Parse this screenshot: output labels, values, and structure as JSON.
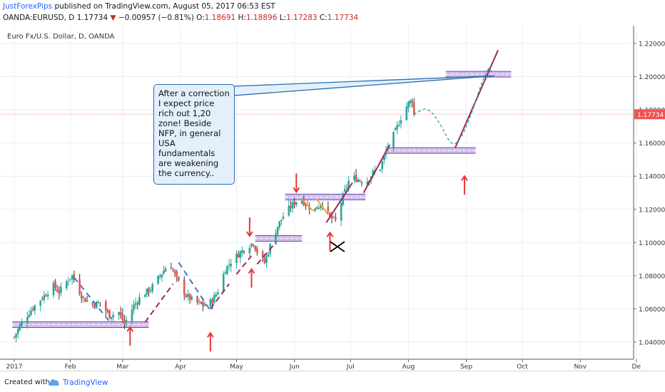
{
  "header": {
    "author": "JustForexPips",
    "published_text": "published on TradingView.com, August 05, 2017 06:53 EST",
    "symbol": "OANDA:EURUSD, D",
    "last": "1.17734",
    "change_arrow": "▼",
    "change": "−0.00957 (−0.81%)",
    "o_label": "O:",
    "o_value": "1.18691",
    "h_label": "H:",
    "h_value": "1.18896",
    "l_label": "L:",
    "l_value": "1.17283",
    "c_label": "C:",
    "c_value": "1.17734"
  },
  "chart_data": {
    "type": "candlestick",
    "title": "Euro Fx/U.S. Dollar, D, OANDA",
    "x_ticks": [
      "2017",
      "Feb",
      "Mar",
      "Apr",
      "May",
      "Jun",
      "Jul",
      "Aug",
      "Sep",
      "Oct",
      "Nov",
      "De"
    ],
    "y_ticks": [
      "1.04000",
      "1.06000",
      "1.08000",
      "1.10000",
      "1.12000",
      "1.14000",
      "1.16000",
      "1.18000",
      "1.20000",
      "1.22000"
    ],
    "ylim": [
      1.032,
      1.227
    ],
    "last_price": 1.17734,
    "last_price_label": "1.17734",
    "price_path": [
      [
        "2017-01-02",
        1.043
      ],
      [
        "2017-01-05",
        1.05
      ],
      [
        "2017-01-10",
        1.058
      ],
      [
        "2017-01-13",
        1.062
      ],
      [
        "2017-01-18",
        1.068
      ],
      [
        "2017-01-23",
        1.074
      ],
      [
        "2017-01-26",
        1.07
      ],
      [
        "2017-01-31",
        1.078
      ],
      [
        "2017-02-02",
        1.08
      ],
      [
        "2017-02-07",
        1.068
      ],
      [
        "2017-02-12",
        1.062
      ],
      [
        "2017-02-17",
        1.064
      ],
      [
        "2017-02-22",
        1.056
      ],
      [
        "2017-02-27",
        1.058
      ],
      [
        "2017-03-02",
        1.051
      ],
      [
        "2017-03-07",
        1.062
      ],
      [
        "2017-03-11",
        1.068
      ],
      [
        "2017-03-16",
        1.072
      ],
      [
        "2017-03-21",
        1.08
      ],
      [
        "2017-03-26",
        1.088
      ],
      [
        "2017-03-30",
        1.078
      ],
      [
        "2017-04-04",
        1.068
      ],
      [
        "2017-04-09",
        1.064
      ],
      [
        "2017-04-14",
        1.062
      ],
      [
        "2017-04-18",
        1.065
      ],
      [
        "2017-04-21",
        1.071
      ],
      [
        "2017-04-25",
        1.084
      ],
      [
        "2017-04-29",
        1.09
      ],
      [
        "2017-05-03",
        1.094
      ],
      [
        "2017-05-07",
        1.098
      ],
      [
        "2017-05-10",
        1.1
      ],
      [
        "2017-05-13",
        1.092
      ],
      [
        "2017-05-16",
        1.088
      ],
      [
        "2017-05-19",
        1.098
      ],
      [
        "2017-05-23",
        1.11
      ],
      [
        "2017-05-27",
        1.118
      ],
      [
        "2017-06-01",
        1.124
      ],
      [
        "2017-06-04",
        1.127
      ],
      [
        "2017-06-08",
        1.122
      ],
      [
        "2017-06-12",
        1.12
      ],
      [
        "2017-06-16",
        1.124
      ],
      [
        "2017-06-20",
        1.115
      ],
      [
        "2017-06-23",
        1.113
      ],
      [
        "2017-06-27",
        1.128
      ],
      [
        "2017-07-01",
        1.14
      ],
      [
        "2017-07-05",
        1.138
      ],
      [
        "2017-07-09",
        1.136
      ],
      [
        "2017-07-13",
        1.142
      ],
      [
        "2017-07-17",
        1.145
      ],
      [
        "2017-07-21",
        1.158
      ],
      [
        "2017-07-25",
        1.167
      ],
      [
        "2017-07-29",
        1.178
      ],
      [
        "2017-08-01",
        1.184
      ],
      [
        "2017-08-03",
        1.186
      ],
      [
        "2017-08-04",
        1.177
      ]
    ],
    "forecast_path": [
      [
        "2017-08-04",
        1.17734
      ],
      [
        "2017-08-11",
        1.182
      ],
      [
        "2017-08-18",
        1.172
      ],
      [
        "2017-08-24",
        1.158
      ],
      [
        "2017-08-29",
        1.162
      ],
      [
        "2017-09-04",
        1.178
      ],
      [
        "2017-09-09",
        1.196
      ],
      [
        "2017-09-13",
        1.205
      ]
    ],
    "zones": [
      {
        "price": 1.0505,
        "from": "2017-01-01",
        "to": "2017-03-15"
      },
      {
        "price": 1.1025,
        "from": "2017-05-11",
        "to": "2017-06-05"
      },
      {
        "price": 1.1275,
        "from": "2017-05-27",
        "to": "2017-07-09"
      },
      {
        "price": 1.1555,
        "from": "2017-07-21",
        "to": "2017-09-06"
      },
      {
        "price": 1.2015,
        "from": "2017-08-21",
        "to": "2017-09-25"
      }
    ],
    "arrows": [
      {
        "date": "2017-03-05",
        "price": 1.049,
        "dir": "up"
      },
      {
        "date": "2017-04-17",
        "price": 1.0455,
        "dir": "up"
      },
      {
        "date": "2017-05-09",
        "price": 1.084,
        "dir": "up"
      },
      {
        "date": "2017-05-08",
        "price": 1.104,
        "dir": "down"
      },
      {
        "date": "2017-06-02",
        "price": 1.1305,
        "dir": "down"
      },
      {
        "date": "2017-06-20",
        "price": 1.106,
        "dir": "up"
      },
      {
        "date": "2017-08-31",
        "price": 1.14,
        "dir": "up"
      }
    ],
    "blue_dashes": [
      [
        [
          "2017-02-03",
          1.079
        ],
        [
          "2017-02-23",
          1.051
        ]
      ],
      [
        [
          "2017-03-31",
          1.088
        ],
        [
          "2017-04-17",
          1.059
        ]
      ]
    ],
    "maroon_dashes": [
      [
        [
          "2017-03-13",
          1.052
        ],
        [
          "2017-03-28",
          1.075
        ]
      ],
      [
        [
          "2017-04-17",
          1.06
        ],
        [
          "2017-04-27",
          1.075
        ]
      ],
      [
        [
          "2017-05-01",
          1.081
        ],
        [
          "2017-05-09",
          1.092
        ]
      ],
      [
        [
          "2017-05-12",
          1.087
        ],
        [
          "2017-05-22",
          1.1
        ]
      ]
    ],
    "solid_lines": [
      {
        "color": "#9c2a5c",
        "points": [
          [
            "2017-06-18",
            1.112
          ],
          [
            "2017-07-02",
            1.136
          ]
        ]
      },
      {
        "color": "#9c2a5c",
        "points": [
          [
            "2017-07-08",
            1.13
          ],
          [
            "2017-07-22",
            1.159
          ]
        ]
      },
      {
        "color": "#9c2a5c",
        "points": [
          [
            "2017-08-26",
            1.157
          ],
          [
            "2017-09-18",
            1.216
          ]
        ]
      },
      {
        "color": "#f0a030",
        "points": [
          [
            "2017-06-05",
            1.126
          ],
          [
            "2017-06-11",
            1.119
          ]
        ]
      },
      {
        "color": "#f0a030",
        "points": [
          [
            "2017-06-13",
            1.126
          ],
          [
            "2017-06-19",
            1.117
          ]
        ]
      }
    ],
    "x_mark": {
      "date": "2017-06-24",
      "price": 1.0975
    },
    "callout_pointer": {
      "date": "2017-09-16",
      "price": 1.2005
    },
    "annotation": "After a correction I expect price rich out 1,20 zone! Beside NFP, in general USA fundamentals are weakening the currency.."
  },
  "footer": {
    "created_with": "Created with",
    "brand": "TradingView"
  },
  "colors": {
    "bull": "#26a69a",
    "bear": "#ef5350",
    "candle_dark": "#333333",
    "zone_fill": "#c9a7e0",
    "zone_line": "#4b57c8",
    "arrow": "#e53935",
    "blue_dash": "#3a78c8",
    "maroon": "#9c2a5c",
    "forecast": "#26a69a",
    "last_line": "#e57373",
    "callout_fill": "#e3f0fb",
    "callout_border": "#2a6db0"
  }
}
